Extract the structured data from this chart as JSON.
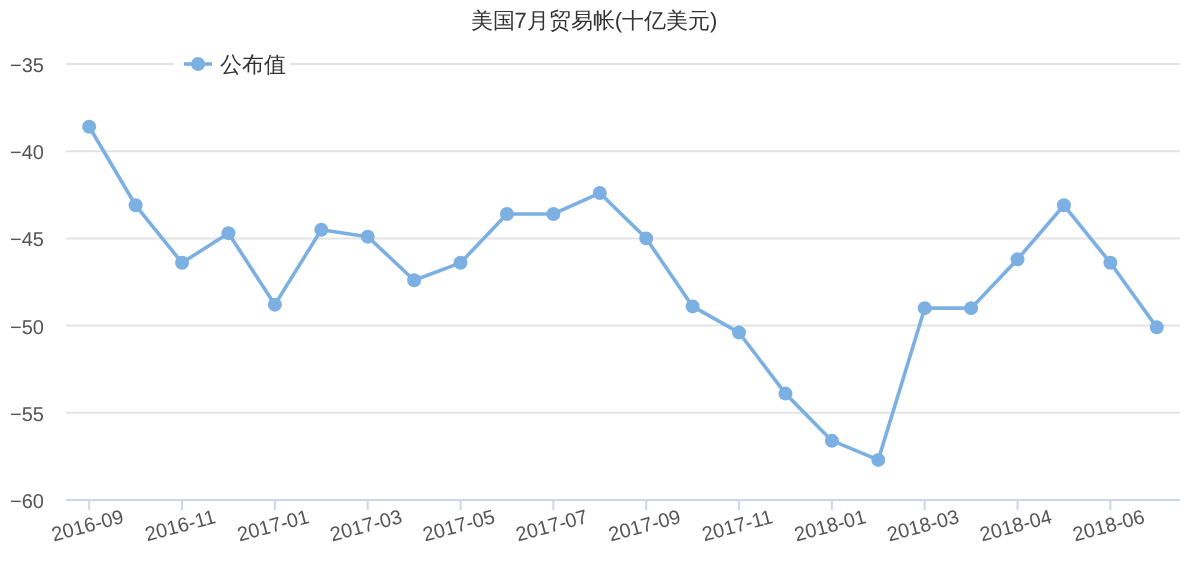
{
  "chart_data": {
    "type": "line",
    "title": "美国7月贸易帐(十亿美元)",
    "categories": [
      "2016-09",
      null,
      "2016-11",
      null,
      "2017-01",
      null,
      "2017-03",
      null,
      "2017-05",
      null,
      "2017-07",
      null,
      "2017-09",
      null,
      "2017-11",
      null,
      "2018-01",
      null,
      "2018-03",
      null,
      "2018-04",
      null,
      "2018-06",
      null
    ],
    "series": [
      {
        "name": "公布值",
        "color": "#7cb0e2",
        "values": [
          -38.6,
          -43.1,
          -46.4,
          -44.7,
          -48.8,
          -44.5,
          -44.9,
          -47.4,
          -46.4,
          -43.6,
          -43.6,
          -42.4,
          -45.0,
          -48.9,
          -50.4,
          -53.9,
          -56.6,
          -57.7,
          -49.0,
          -49.0,
          -46.2,
          -43.1,
          -46.4,
          -50.1
        ]
      }
    ],
    "ylim": [
      -60,
      -35
    ],
    "yticks": [
      -60,
      -55,
      -50,
      -45,
      -40,
      -35
    ],
    "grid": "y",
    "legend": "top left",
    "marker": "circle",
    "line_style": "solid"
  }
}
